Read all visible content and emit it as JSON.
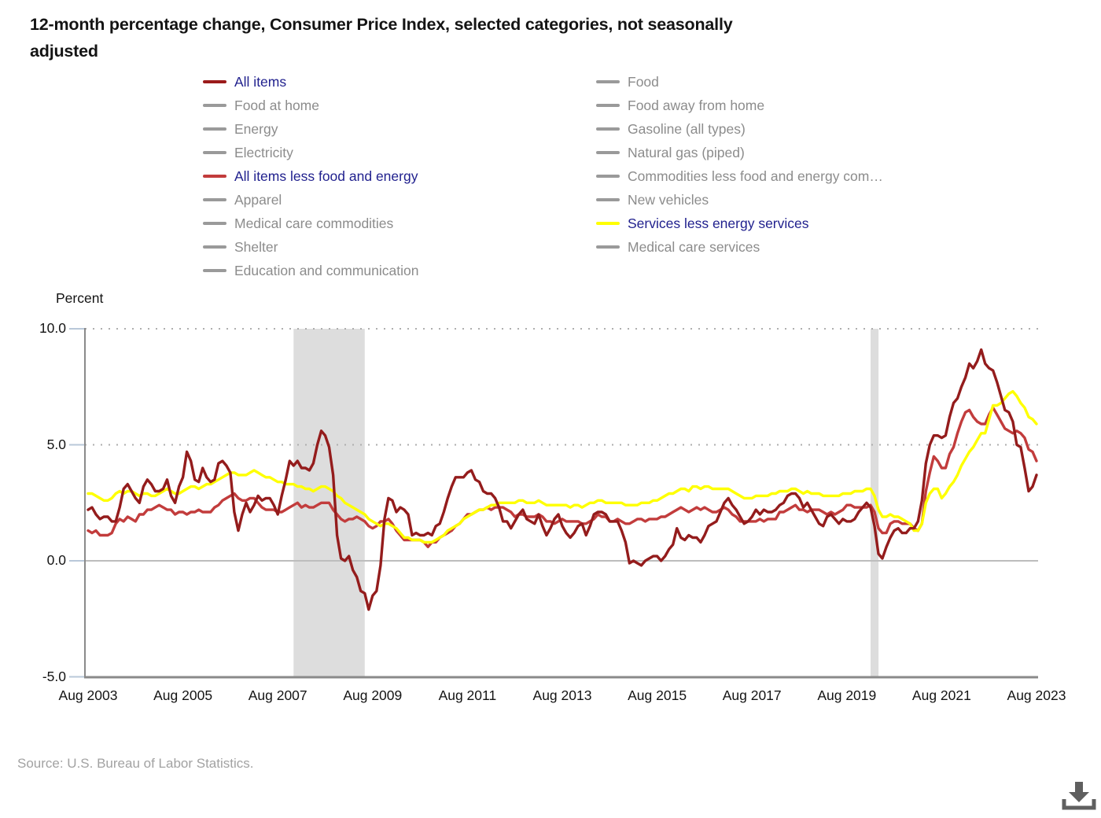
{
  "header": {
    "title_line1": "12-month percentage change, Consumer Price Index, selected categories, not seasonally",
    "title_line2": "adjusted"
  },
  "legend": {
    "left_column": [
      {
        "label": "All items",
        "swatch": "#9b1b1b",
        "active": true
      },
      {
        "label": "Food at home",
        "swatch": "#9a9a9a",
        "active": false
      },
      {
        "label": "Energy",
        "swatch": "#9a9a9a",
        "active": false
      },
      {
        "label": "Electricity",
        "swatch": "#9a9a9a",
        "active": false
      },
      {
        "label": "All items less food and energy",
        "swatch": "#c23c3c",
        "active": true
      },
      {
        "label": "Apparel",
        "swatch": "#9a9a9a",
        "active": false
      },
      {
        "label": "Medical care commodities",
        "swatch": "#9a9a9a",
        "active": false
      },
      {
        "label": "Shelter",
        "swatch": "#9a9a9a",
        "active": false
      },
      {
        "label": "Education and communication",
        "swatch": "#9a9a9a",
        "active": false
      }
    ],
    "right_column": [
      {
        "label": "Food",
        "swatch": "#9a9a9a",
        "active": false
      },
      {
        "label": "Food away from home",
        "swatch": "#9a9a9a",
        "active": false
      },
      {
        "label": "Gasoline (all types)",
        "swatch": "#9a9a9a",
        "active": false
      },
      {
        "label": "Natural gas (piped)",
        "swatch": "#9a9a9a",
        "active": false
      },
      {
        "label": "Commodities less food and energy com…",
        "swatch": "#9a9a9a",
        "active": false
      },
      {
        "label": "New vehicles",
        "swatch": "#9a9a9a",
        "active": false
      },
      {
        "label": "Services less energy services",
        "swatch": "#ffff00",
        "active": true
      },
      {
        "label": "Medical care services",
        "swatch": "#9a9a9a",
        "active": false
      }
    ]
  },
  "colors": {
    "active_label": "#21218e",
    "inactive_label": "#8c8c8c",
    "recession_band": "#dddddd",
    "dotted_gridline": "#aeaeae",
    "zero_line": "#bdbdbd",
    "axis_line": "#8a8a8a",
    "tick_mark": "#b9c8d9"
  },
  "chart_data": {
    "type": "line",
    "title": "12-month percentage change, Consumer Price Index, selected categories, not seasonally adjusted",
    "ylabel": "Percent",
    "xlabel": "",
    "ylim": [
      -5,
      10
    ],
    "grid": "dotted horizontal at 5.0 and 10.0, solid line at 0.0",
    "legend_position": "top",
    "x_unit": "month",
    "x_range": [
      "Aug 2003",
      "Aug 2023"
    ],
    "x_tick_month_interval": 24,
    "x_tick_labels": [
      "Aug 2003",
      "Aug 2005",
      "Aug 2007",
      "Aug 2009",
      "Aug 2011",
      "Aug 2013",
      "Aug 2015",
      "Aug 2017",
      "Aug 2019",
      "Aug 2021",
      "Aug 2023"
    ],
    "y_ticks": [
      {
        "value": 10,
        "label": "10.0",
        "line": "dotted"
      },
      {
        "value": 5,
        "label": "5.0",
        "line": "dotted"
      },
      {
        "value": 0,
        "label": "0.0",
        "line": "solid"
      },
      {
        "value": -5,
        "label": "-5.0",
        "line": "axis"
      }
    ],
    "recession_band_month_ranges": [
      [
        52,
        70
      ],
      [
        198,
        200
      ]
    ],
    "draw_order": [
      1,
      2,
      0
    ],
    "series": [
      {
        "name": "All items",
        "color": "#941c1c",
        "values": [
          2.2,
          2.3,
          2.0,
          1.8,
          1.9,
          1.9,
          1.7,
          1.7,
          2.3,
          3.1,
          3.3,
          3.0,
          2.7,
          2.5,
          3.2,
          3.5,
          3.3,
          3.0,
          3.0,
          3.1,
          3.5,
          2.8,
          2.5,
          3.2,
          3.6,
          4.7,
          4.3,
          3.5,
          3.4,
          4.0,
          3.6,
          3.4,
          3.5,
          4.2,
          4.3,
          4.1,
          3.8,
          2.1,
          1.3,
          2.0,
          2.5,
          2.1,
          2.4,
          2.8,
          2.6,
          2.7,
          2.7,
          2.4,
          2.0,
          2.8,
          3.5,
          4.3,
          4.1,
          4.3,
          4.0,
          4.0,
          3.9,
          4.2,
          5.0,
          5.6,
          5.4,
          4.9,
          3.7,
          1.1,
          0.1,
          0.0,
          0.2,
          -0.4,
          -0.7,
          -1.3,
          -1.4,
          -2.1,
          -1.5,
          -1.3,
          -0.2,
          1.8,
          2.7,
          2.6,
          2.1,
          2.3,
          2.2,
          2.0,
          1.1,
          1.2,
          1.1,
          1.1,
          1.2,
          1.1,
          1.5,
          1.6,
          2.1,
          2.7,
          3.2,
          3.6,
          3.6,
          3.6,
          3.8,
          3.9,
          3.5,
          3.4,
          3.0,
          2.9,
          2.9,
          2.7,
          2.3,
          1.7,
          1.7,
          1.4,
          1.7,
          2.0,
          2.2,
          1.8,
          1.7,
          1.6,
          2.0,
          1.5,
          1.1,
          1.4,
          1.8,
          2.0,
          1.5,
          1.2,
          1.0,
          1.2,
          1.5,
          1.6,
          1.1,
          1.5,
          2.0,
          2.1,
          2.1,
          2.0,
          1.7,
          1.7,
          1.7,
          1.3,
          0.8,
          -0.1,
          0.0,
          -0.1,
          -0.2,
          0.0,
          0.1,
          0.2,
          0.2,
          0.0,
          0.2,
          0.5,
          0.7,
          1.4,
          1.0,
          0.9,
          1.1,
          1.0,
          1.0,
          0.8,
          1.1,
          1.5,
          1.6,
          1.7,
          2.1,
          2.5,
          2.7,
          2.4,
          2.2,
          1.9,
          1.6,
          1.7,
          1.9,
          2.2,
          2.0,
          2.2,
          2.1,
          2.1,
          2.2,
          2.4,
          2.5,
          2.8,
          2.9,
          2.9,
          2.7,
          2.3,
          2.5,
          2.2,
          1.9,
          1.6,
          1.5,
          1.9,
          2.0,
          1.8,
          1.6,
          1.8,
          1.7,
          1.7,
          1.8,
          2.1,
          2.3,
          2.5,
          2.3,
          1.5,
          0.3,
          0.1,
          0.6,
          1.0,
          1.3,
          1.4,
          1.2,
          1.2,
          1.4,
          1.4,
          1.7,
          2.6,
          4.2,
          5.0,
          5.4,
          5.4,
          5.3,
          5.4,
          6.2,
          6.8,
          7.0,
          7.5,
          7.9,
          8.5,
          8.3,
          8.6,
          9.1,
          8.5,
          8.3,
          8.2,
          7.7,
          7.1,
          6.5,
          6.4,
          6.0,
          5.0,
          4.9,
          4.0,
          3.0,
          3.2,
          3.7
        ]
      },
      {
        "name": "All items less food and energy",
        "color": "#c23c3c",
        "values": [
          1.3,
          1.2,
          1.3,
          1.1,
          1.1,
          1.1,
          1.2,
          1.6,
          1.8,
          1.7,
          1.9,
          1.8,
          1.7,
          2.0,
          2.0,
          2.2,
          2.2,
          2.3,
          2.4,
          2.3,
          2.2,
          2.2,
          2.0,
          2.1,
          2.1,
          2.0,
          2.1,
          2.1,
          2.2,
          2.1,
          2.1,
          2.1,
          2.3,
          2.4,
          2.6,
          2.7,
          2.8,
          2.9,
          2.7,
          2.6,
          2.6,
          2.7,
          2.7,
          2.5,
          2.3,
          2.2,
          2.2,
          2.2,
          2.1,
          2.1,
          2.2,
          2.3,
          2.4,
          2.5,
          2.3,
          2.4,
          2.3,
          2.3,
          2.4,
          2.5,
          2.5,
          2.5,
          2.2,
          2.0,
          1.8,
          1.7,
          1.8,
          1.8,
          1.9,
          1.8,
          1.7,
          1.5,
          1.4,
          1.5,
          1.7,
          1.7,
          1.8,
          1.6,
          1.3,
          1.1,
          0.9,
          0.9,
          0.9,
          0.9,
          0.9,
          0.8,
          0.6,
          0.8,
          0.8,
          1.0,
          1.1,
          1.2,
          1.3,
          1.5,
          1.6,
          1.8,
          2.0,
          2.0,
          2.1,
          2.2,
          2.2,
          2.3,
          2.2,
          2.3,
          2.3,
          2.3,
          2.2,
          2.1,
          1.9,
          2.0,
          2.0,
          1.9,
          1.9,
          1.9,
          2.0,
          1.9,
          1.7,
          1.7,
          1.6,
          1.7,
          1.8,
          1.7,
          1.7,
          1.7,
          1.7,
          1.6,
          1.6,
          1.7,
          1.8,
          2.0,
          1.9,
          1.9,
          1.7,
          1.7,
          1.8,
          1.7,
          1.6,
          1.6,
          1.7,
          1.8,
          1.8,
          1.7,
          1.8,
          1.8,
          1.8,
          1.9,
          1.9,
          2.0,
          2.1,
          2.2,
          2.3,
          2.2,
          2.1,
          2.2,
          2.3,
          2.2,
          2.3,
          2.2,
          2.1,
          2.1,
          2.2,
          2.3,
          2.2,
          2.0,
          1.9,
          1.7,
          1.7,
          1.7,
          1.7,
          1.7,
          1.8,
          1.7,
          1.8,
          1.8,
          1.8,
          2.1,
          2.1,
          2.2,
          2.3,
          2.4,
          2.2,
          2.2,
          2.1,
          2.2,
          2.2,
          2.2,
          2.1,
          2.0,
          2.1,
          2.0,
          2.1,
          2.2,
          2.4,
          2.4,
          2.3,
          2.3,
          2.3,
          2.3,
          2.4,
          2.1,
          1.4,
          1.2,
          1.2,
          1.6,
          1.7,
          1.7,
          1.6,
          1.6,
          1.6,
          1.4,
          1.3,
          1.6,
          3.0,
          3.8,
          4.5,
          4.3,
          4.0,
          4.0,
          4.6,
          4.9,
          5.5,
          6.0,
          6.4,
          6.5,
          6.2,
          6.0,
          5.9,
          5.9,
          6.3,
          6.6,
          6.3,
          6.0,
          5.7,
          5.6,
          5.5,
          5.6,
          5.5,
          5.3,
          4.8,
          4.7,
          4.3
        ]
      },
      {
        "name": "Services less energy services",
        "color": "#ffff00",
        "values": [
          2.9,
          2.9,
          2.8,
          2.7,
          2.6,
          2.6,
          2.7,
          2.9,
          3.0,
          2.9,
          3.0,
          3.0,
          2.9,
          2.8,
          2.9,
          2.9,
          2.8,
          2.8,
          2.9,
          3.0,
          3.1,
          3.0,
          2.9,
          2.9,
          3.0,
          3.1,
          3.2,
          3.2,
          3.1,
          3.2,
          3.3,
          3.3,
          3.4,
          3.5,
          3.6,
          3.7,
          3.8,
          3.8,
          3.7,
          3.7,
          3.7,
          3.8,
          3.9,
          3.8,
          3.7,
          3.6,
          3.6,
          3.5,
          3.4,
          3.4,
          3.3,
          3.3,
          3.3,
          3.2,
          3.2,
          3.1,
          3.1,
          3.0,
          3.1,
          3.2,
          3.2,
          3.1,
          3.0,
          2.8,
          2.7,
          2.5,
          2.4,
          2.3,
          2.2,
          2.1,
          2.0,
          1.8,
          1.7,
          1.6,
          1.5,
          1.6,
          1.6,
          1.5,
          1.4,
          1.2,
          1.0,
          1.0,
          0.9,
          0.9,
          0.9,
          0.8,
          0.8,
          0.8,
          0.9,
          1.0,
          1.1,
          1.3,
          1.4,
          1.5,
          1.6,
          1.8,
          1.9,
          2.0,
          2.1,
          2.2,
          2.2,
          2.3,
          2.4,
          2.4,
          2.5,
          2.5,
          2.5,
          2.5,
          2.5,
          2.6,
          2.6,
          2.5,
          2.5,
          2.5,
          2.6,
          2.5,
          2.4,
          2.4,
          2.4,
          2.4,
          2.4,
          2.4,
          2.3,
          2.4,
          2.4,
          2.3,
          2.4,
          2.5,
          2.5,
          2.6,
          2.6,
          2.5,
          2.5,
          2.5,
          2.5,
          2.5,
          2.4,
          2.4,
          2.4,
          2.4,
          2.5,
          2.5,
          2.5,
          2.6,
          2.6,
          2.7,
          2.8,
          2.9,
          2.9,
          3.0,
          3.1,
          3.1,
          3.0,
          3.2,
          3.2,
          3.1,
          3.2,
          3.2,
          3.1,
          3.1,
          3.1,
          3.1,
          3.1,
          3.0,
          2.9,
          2.8,
          2.7,
          2.7,
          2.7,
          2.8,
          2.8,
          2.8,
          2.8,
          2.9,
          2.9,
          3.0,
          3.0,
          3.0,
          3.1,
          3.1,
          3.0,
          2.9,
          3.0,
          2.9,
          2.9,
          2.9,
          2.8,
          2.8,
          2.8,
          2.8,
          2.8,
          2.9,
          2.9,
          2.9,
          3.0,
          3.0,
          3.0,
          3.1,
          3.1,
          2.8,
          2.2,
          1.9,
          1.9,
          2.0,
          1.9,
          1.9,
          1.8,
          1.7,
          1.6,
          1.3,
          1.3,
          1.6,
          2.5,
          2.9,
          3.1,
          3.1,
          2.7,
          2.9,
          3.2,
          3.4,
          3.7,
          4.1,
          4.4,
          4.7,
          4.9,
          5.2,
          5.5,
          5.5,
          6.1,
          6.7,
          6.7,
          6.8,
          7.0,
          7.2,
          7.3,
          7.1,
          6.8,
          6.6,
          6.2,
          6.1,
          5.9
        ]
      }
    ]
  },
  "footer": {
    "source": "Source: U.S. Bureau of Labor Statistics."
  }
}
